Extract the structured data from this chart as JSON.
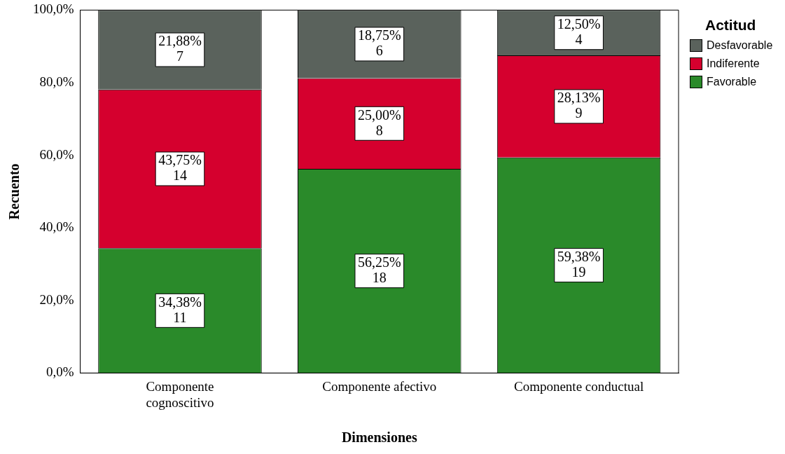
{
  "chart_data": {
    "type": "bar",
    "stacked": true,
    "xlabel": "Dimensiones",
    "ylabel": "Recuento",
    "legend_title": "Actitud",
    "legend": "top right",
    "grid": false,
    "categories": [
      "Componente cognoscitivo",
      "Componente afectivo",
      "Componente conductual"
    ],
    "ylim": [
      0,
      100
    ],
    "yticks": [
      {
        "value": 0,
        "label": "0,0%"
      },
      {
        "value": 20,
        "label": "20,0%"
      },
      {
        "value": 40,
        "label": "40,0%"
      },
      {
        "value": 60,
        "label": "60,0%"
      },
      {
        "value": 80,
        "label": "80,0%"
      },
      {
        "value": 100,
        "label": "100,0%"
      }
    ],
    "series": [
      {
        "name": "Favorable",
        "color": "#2a8a2a",
        "values": [
          34.38,
          56.25,
          59.38
        ],
        "value_labels": [
          "34,38%\n11",
          "56,25%\n18",
          "59,38%\n19"
        ]
      },
      {
        "name": "Indiferente",
        "color": "#d5002e",
        "values": [
          43.75,
          25.0,
          28.13
        ],
        "value_labels": [
          "43,75%\n14",
          "25,00%\n8",
          "28,13%\n9"
        ]
      },
      {
        "name": "Desfavorable",
        "color": "#5a625c",
        "values": [
          21.88,
          18.75,
          12.5
        ],
        "value_labels": [
          "21,88%\n7",
          "18,75%\n6",
          "12,50%\n4"
        ]
      }
    ]
  }
}
